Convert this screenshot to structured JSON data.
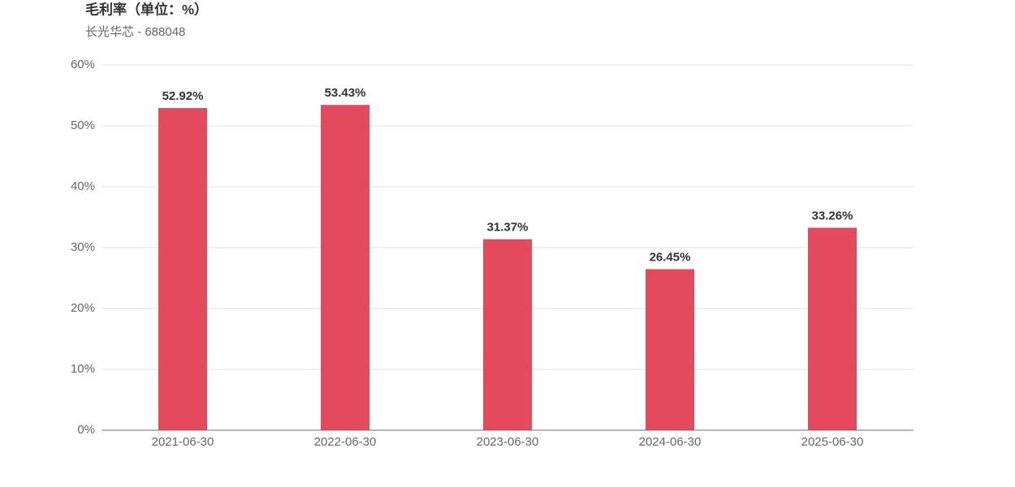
{
  "chart_data": {
    "type": "bar",
    "title": "毛利率（单位：%）",
    "subtitle": "长光华芯 - 688048",
    "categories": [
      "2021-06-30",
      "2022-06-30",
      "2023-06-30",
      "2024-06-30",
      "2025-06-30"
    ],
    "values": [
      52.92,
      53.43,
      31.37,
      26.45,
      33.26
    ],
    "value_labels": [
      "52.92%",
      "53.43%",
      "31.37%",
      "26.45%",
      "33.26%"
    ],
    "color": "#e34a5e",
    "ylim": [
      0,
      60
    ],
    "yticks": [
      {
        "value": 0,
        "label": "0%"
      },
      {
        "value": 10,
        "label": "10%"
      },
      {
        "value": 20,
        "label": "20%"
      },
      {
        "value": 30,
        "label": "30%"
      },
      {
        "value": 40,
        "label": "40%"
      },
      {
        "value": 50,
        "label": "50%"
      },
      {
        "value": 60,
        "label": "60%"
      }
    ],
    "grid": true
  }
}
